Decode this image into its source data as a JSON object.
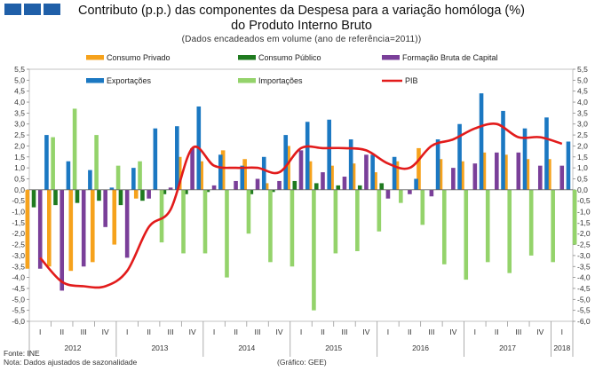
{
  "header": {
    "title_line1": "Contributo (p.p.) das componentes da Despesa para a variação homóloga (%)",
    "title_line2": "do Produto Interno Bruto",
    "subtitle": "(Dados encadeados em volume (ano de referência=2011))"
  },
  "footer": {
    "source": "Fonte: INE",
    "note": "Nota: Dados ajustados de sazonalidade",
    "credit": "(Gráfico: GEE)"
  },
  "colors": {
    "consumo_privado": "#f6a21c",
    "consumo_publico": "#1f7a1f",
    "fbcf": "#7a3f99",
    "exportacoes": "#1b78c2",
    "importacoes": "#94d36b",
    "pib": "#e21b1b",
    "logo": "#1f5fa8"
  },
  "chart_data": {
    "type": "bar",
    "title": "Contributo (p.p.) das componentes da Despesa para a variação homóloga (%) do Produto Interno Bruto",
    "ylim": [
      -6.0,
      5.5
    ],
    "ytick_step": 0.5,
    "ytick_labels": [
      "5,5",
      "5,0",
      "4,5",
      "4,0",
      "3,5",
      "3,0",
      "2,5",
      "2,0",
      "1,5",
      "1,0",
      "0,5",
      "0,0",
      "-0,5",
      "-1,0",
      "-1,5",
      "-2,0",
      "-2,5",
      "-3,0",
      "-3,5",
      "-4,0",
      "-4,5",
      "-5,0",
      "-5,5",
      "-6,0"
    ],
    "categories": [
      "2012 I",
      "2012 II",
      "2012 III",
      "2012 IV",
      "2013 I",
      "2013 II",
      "2013 III",
      "2013 IV",
      "2014 I",
      "2014 II",
      "2014 III",
      "2014 IV",
      "2015 I",
      "2015 II",
      "2015 III",
      "2015 IV",
      "2016 I",
      "2016 II",
      "2016 III",
      "2016 IV",
      "2017 I",
      "2017 II",
      "2017 III",
      "2017 IV",
      "2018 I"
    ],
    "quarter_labels": [
      "I",
      "II",
      "III",
      "IV",
      "I",
      "II",
      "III",
      "IV",
      "I",
      "II",
      "III",
      "IV",
      "I",
      "II",
      "III",
      "IV",
      "I",
      "II",
      "III",
      "IV",
      "I",
      "II",
      "III",
      "IV",
      "I"
    ],
    "year_labels": [
      {
        "label": "2012",
        "start": 0,
        "count": 4
      },
      {
        "label": "2013",
        "start": 4,
        "count": 4
      },
      {
        "label": "2014",
        "start": 8,
        "count": 4
      },
      {
        "label": "2015",
        "start": 12,
        "count": 4
      },
      {
        "label": "2016",
        "start": 16,
        "count": 4
      },
      {
        "label": "2017",
        "start": 20,
        "count": 4
      },
      {
        "label": "2018",
        "start": 24,
        "count": 1
      }
    ],
    "series": [
      {
        "key": "consumo_privado",
        "name": "Consumo Privado",
        "kind": "bar",
        "values": [
          -3.6,
          -3.5,
          -3.7,
          -3.3,
          -2.5,
          -0.4,
          0.0,
          1.5,
          1.3,
          1.8,
          1.4,
          0.3,
          2.0,
          1.3,
          1.1,
          1.2,
          0.8,
          1.3,
          1.9,
          1.4,
          1.3,
          1.7,
          1.6,
          1.4,
          1.4
        ]
      },
      {
        "key": "consumo_publico",
        "name": "Consumo Público",
        "kind": "bar",
        "values": [
          -0.8,
          -0.7,
          -0.6,
          -0.5,
          -0.7,
          -0.5,
          -0.2,
          -0.2,
          -0.1,
          0.0,
          -0.2,
          -0.1,
          0.4,
          0.3,
          0.2,
          0.2,
          0.3,
          0.0,
          0.0,
          0.0,
          0.0,
          0.0,
          0.0,
          0.0,
          0.0
        ]
      },
      {
        "key": "fbcf",
        "name": "Formação Bruta de Capital",
        "kind": "bar",
        "values": [
          -3.6,
          -4.6,
          -3.5,
          -1.7,
          -3.1,
          -0.4,
          0.1,
          1.9,
          0.2,
          0.4,
          0.5,
          0.4,
          1.8,
          0.8,
          0.6,
          1.6,
          -0.4,
          -0.2,
          -0.3,
          1.0,
          1.2,
          1.7,
          1.7,
          1.1,
          1.1
        ]
      },
      {
        "key": "exportacoes",
        "name": "Exportações",
        "kind": "bar",
        "values": [
          2.5,
          1.3,
          0.9,
          0.1,
          1.0,
          2.8,
          2.9,
          3.8,
          1.6,
          1.1,
          1.5,
          2.5,
          3.1,
          3.2,
          2.3,
          1.6,
          1.5,
          0.5,
          2.3,
          3.0,
          4.4,
          3.6,
          2.8,
          3.3,
          2.2
        ]
      },
      {
        "key": "importacoes",
        "name": "Importações",
        "kind": "bar",
        "values": [
          2.4,
          3.7,
          2.5,
          1.1,
          1.3,
          -2.4,
          -2.9,
          -2.9,
          -4.0,
          -2.0,
          -3.3,
          -3.5,
          -5.5,
          -2.9,
          -2.8,
          -1.9,
          -0.6,
          -1.6,
          -3.4,
          -4.1,
          -3.3,
          -3.8,
          -3.0,
          -3.3,
          -2.5
        ]
      },
      {
        "key": "pib",
        "name": "PIB",
        "kind": "line",
        "values": [
          -3.1,
          -4.2,
          -4.4,
          -4.4,
          -3.7,
          -1.7,
          -0.9,
          1.9,
          1.1,
          1.0,
          1.0,
          0.8,
          1.9,
          1.9,
          1.9,
          1.8,
          1.2,
          1.0,
          2.0,
          2.3,
          2.8,
          3.0,
          2.4,
          2.4,
          2.1
        ]
      }
    ],
    "legend_position": "top",
    "legend": [
      {
        "key": "consumo_privado",
        "label": "Consumo Privado"
      },
      {
        "key": "consumo_publico",
        "label": "Consumo Público"
      },
      {
        "key": "fbcf",
        "label": "Formação Bruta de Capital"
      },
      {
        "key": "exportacoes",
        "label": "Exportações"
      },
      {
        "key": "importacoes",
        "label": "Importações"
      },
      {
        "key": "pib",
        "label": "PIB"
      }
    ],
    "grid": false
  }
}
